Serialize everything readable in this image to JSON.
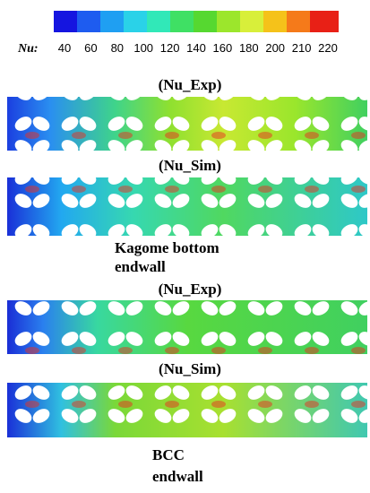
{
  "colorbar": {
    "label": "Nu:",
    "ticks": [
      "40",
      "60",
      "80",
      "100",
      "120",
      "140",
      "160",
      "180",
      "200",
      "210",
      "220"
    ]
  },
  "panels": [
    {
      "title": "(Nu_Exp)"
    },
    {
      "title": "(Nu_Sim)"
    },
    {
      "title": "(Nu_Exp)"
    },
    {
      "title": "(Nu_Sim)"
    }
  ],
  "captions": [
    {
      "lines": [
        "Kagome bottom",
        "endwall"
      ]
    },
    {
      "lines": [
        "BCC",
        "endwall"
      ]
    }
  ]
}
